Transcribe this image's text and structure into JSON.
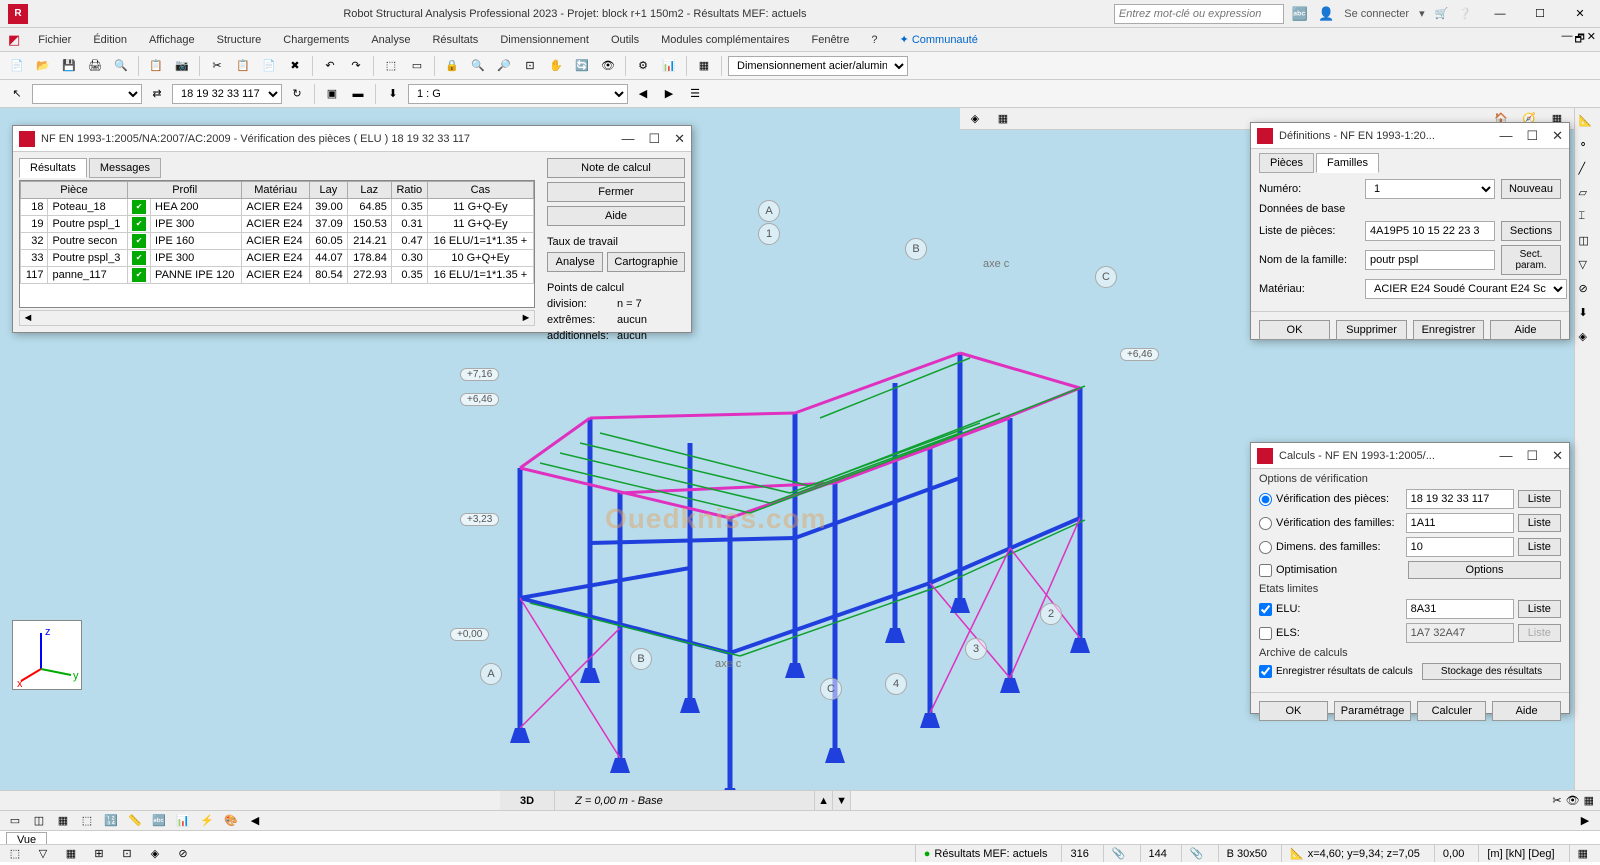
{
  "app": {
    "icon": "R",
    "title": "Robot Structural Analysis Professional 2023 - Projet: block r+1 150m2 - Résultats MEF: actuels",
    "search_ph": "Entrez mot-clé ou expression",
    "signin": "Se connecter"
  },
  "menu": [
    "Fichier",
    "Édition",
    "Affichage",
    "Structure",
    "Chargements",
    "Analyse",
    "Résultats",
    "Dimensionnement",
    "Outils",
    "Modules complémentaires",
    "Fenêtre",
    "?",
    "Communauté"
  ],
  "tb2": {
    "members": "18 19 32 33 117",
    "case": "1 : G",
    "combo": "Dimensionnement acier/alumin"
  },
  "results_dlg": {
    "title": "NF EN 1993-1:2005/NA:2007/AC:2009 - Vérification des pièces ( ELU ) 18 19 32 33 117",
    "tabs": [
      "Résultats",
      "Messages"
    ],
    "note": "Note de calcul",
    "close": "Fermer",
    "help": "Aide",
    "work": "Taux de travail",
    "analyse": "Analyse",
    "carto": "Cartographie",
    "pts_hdr": "Points de calcul",
    "div_l": "division:",
    "div_v": "n = 7",
    "ext_l": "extrêmes:",
    "ext_v": "aucun",
    "add_l": "additionnels:",
    "add_v": "aucun",
    "cols": [
      "Pièce",
      "Profil",
      "Matériau",
      "Lay",
      "Laz",
      "Ratio",
      "Cas"
    ],
    "rows": [
      {
        "n": "18",
        "name": "Poteau_18",
        "profil": "HEA 200",
        "mat": "ACIER E24",
        "lay": "39.00",
        "laz": "64.85",
        "ratio": "0.35",
        "cas": "11 G+Q-Ey"
      },
      {
        "n": "19",
        "name": "Poutre pspl_1",
        "profil": "IPE 300",
        "mat": "ACIER E24",
        "lay": "37.09",
        "laz": "150.53",
        "ratio": "0.31",
        "cas": "11 G+Q-Ey"
      },
      {
        "n": "32",
        "name": "Poutre secon",
        "profil": "IPE 160",
        "mat": "ACIER E24",
        "lay": "60.05",
        "laz": "214.21",
        "ratio": "0.47",
        "cas": "16 ELU/1=1*1.35 +"
      },
      {
        "n": "33",
        "name": "Poutre pspl_3",
        "profil": "IPE 300",
        "mat": "ACIER E24",
        "lay": "44.07",
        "laz": "178.84",
        "ratio": "0.30",
        "cas": "10 G+Q+Ey"
      },
      {
        "n": "117",
        "name": "panne_117",
        "profil": "PANNE IPE 120",
        "mat": "ACIER E24",
        "lay": "80.54",
        "laz": "272.93",
        "ratio": "0.35",
        "cas": "16 ELU/1=1*1.35 +"
      }
    ]
  },
  "defs_dlg": {
    "title": "Définitions - NF EN 1993-1:20...",
    "tabs": [
      "Pièces",
      "Familles"
    ],
    "num_l": "Numéro:",
    "num_v": "1",
    "new": "Nouveau",
    "base": "Données de base",
    "list_l": "Liste de pièces:",
    "list_v": "4A19P5 10 15 22 23 3",
    "sections": "Sections",
    "fam_l": "Nom de la famille:",
    "fam_v": "poutr pspl",
    "sectparam": "Sect. param.",
    "mat_l": "Matériau:",
    "mat_v": "ACIER E24 Soudé  Courant  E24 Sc",
    "ok": "OK",
    "del": "Supprimer",
    "save": "Enregistrer",
    "help": "Aide"
  },
  "calc_dlg": {
    "title": "Calculs - NF EN 1993-1:2005/...",
    "opts": "Options de vérification",
    "vp": "Vérification des pièces:",
    "vp_v": "18 19 32 33 117",
    "vf": "Vérification des familles:",
    "vf_v": "1A11",
    "df": "Dimens. des familles:",
    "df_v": "10",
    "opt": "Optimisation",
    "options": "Options",
    "states": "Etats limites",
    "elu": "ELU:",
    "elu_v": "8A31",
    "els": "ELS:",
    "els_v": "1A7 32A47",
    "arch": "Archive de calculs",
    "arch_chk": "Enregistrer résultats de calculs",
    "stock": "Stockage des résultats",
    "ok": "OK",
    "param": "Paramétrage",
    "calc": "Calculer",
    "help": "Aide",
    "liste": "Liste"
  },
  "viewport": {
    "levels": {
      "l1": "+7,16",
      "l2": "+6,46",
      "l3": "+3,23",
      "l4": "+0,00",
      "r1": "+6,46"
    },
    "axes": {
      "a": "A",
      "b": "B",
      "c": "C",
      "n1": "1",
      "n2": "2",
      "n3": "3",
      "n4": "4"
    },
    "axe_c": "axe c",
    "cas": "Cas: 1 (G)",
    "vue": "Vue",
    "mode3d": "3D",
    "zinfo": "Z = 0,00 m - Base"
  },
  "status": {
    "vue": "Vue",
    "results": "Résultats MEF: actuels",
    "n1": "316",
    "n2": "144",
    "sect": "B 30x50",
    "coords": "x=4,60; y=9,34; z=7,05",
    "zoom": "0,00",
    "units": "[m] [kN] [Deg]"
  },
  "colors": {
    "bg": "#b8dceb",
    "beam_blue": "#2040dd",
    "beam_magenta": "#e030c0",
    "beam_green": "#10a030",
    "brace": "#c08000",
    "accent_red": "#c8102e"
  }
}
